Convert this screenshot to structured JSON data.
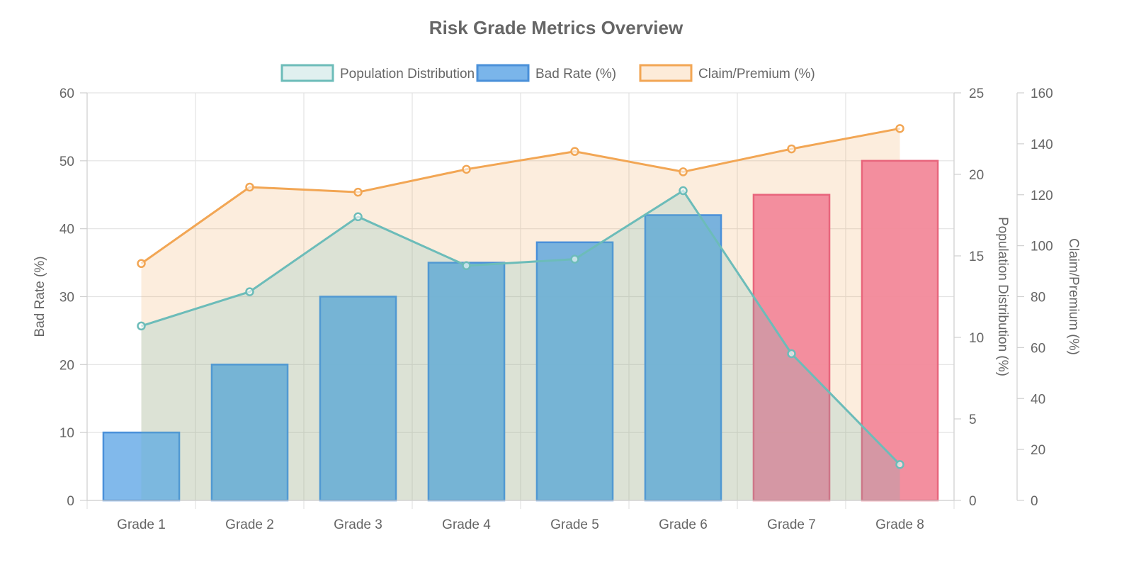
{
  "chart_data": {
    "type": "bar",
    "title": "Risk Grade Metrics Overview",
    "categories": [
      "Grade 1",
      "Grade 2",
      "Grade 3",
      "Grade 4",
      "Grade 5",
      "Grade 6",
      "Grade 7",
      "Grade 8"
    ],
    "legend": {
      "placement": "top",
      "entries": [
        {
          "label": "Population Distribution (%)",
          "fill": "#e0f0ef",
          "stroke": "#6cbcb9"
        },
        {
          "label": "Bad Rate (%)",
          "fill": "#7ab5ea",
          "stroke": "#4a90d9"
        },
        {
          "label": "Claim/Premium (%)",
          "fill": "#fdebd9",
          "stroke": "#f2a654"
        }
      ]
    },
    "axes": {
      "left": {
        "label": "Bad Rate (%)",
        "min": 0,
        "max": 60,
        "ticks": [
          0,
          10,
          20,
          30,
          40,
          50,
          60
        ]
      },
      "right1": {
        "label": "Population Distribution (%)",
        "min": 0,
        "max": 25,
        "ticks": [
          0,
          5,
          10,
          15,
          20,
          25
        ]
      },
      "right2": {
        "label": "Claim/Premium (%)",
        "min": 0,
        "max": 160,
        "ticks": [
          0,
          20,
          40,
          60,
          80,
          100,
          120,
          140,
          160
        ]
      }
    },
    "grid": true,
    "series": [
      {
        "name": "Bad Rate (%)",
        "type": "bar",
        "axis": "left",
        "values": [
          10,
          20,
          30,
          35,
          38,
          42,
          45,
          50
        ],
        "colors": [
          "#7ab5ea",
          "#72afdc",
          "#72afdc",
          "#72afdc",
          "#72afdc",
          "#72afdc",
          "#f2899a",
          "#f2899a"
        ],
        "border_colors": [
          "#4a90d9",
          "#4a90d9",
          "#4a90d9",
          "#4a90d9",
          "#4a90d9",
          "#4a90d9",
          "#e8657c",
          "#e8657c"
        ]
      },
      {
        "name": "Population Distribution (%)",
        "type": "area",
        "axis": "right1",
        "values": [
          10.7,
          12.8,
          17.4,
          14.4,
          14.8,
          19.0,
          9.0,
          2.2
        ],
        "color": "#6cbcb9",
        "fill": "rgba(108, 188, 185, 0.22)"
      },
      {
        "name": "Claim/Premium (%)",
        "type": "area",
        "axis": "right2",
        "values": [
          93,
          123,
          121,
          130,
          137,
          129,
          138,
          146
        ],
        "color": "#f2a654",
        "fill": "rgba(242, 166, 84, 0.2)"
      }
    ]
  }
}
